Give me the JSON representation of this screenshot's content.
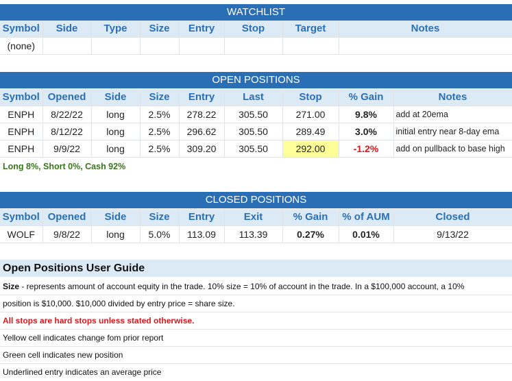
{
  "watchlist": {
    "title": "WATCHLIST",
    "headers": [
      "Symbol",
      "Side",
      "Type",
      "Size",
      "Entry",
      "Stop",
      "Target",
      "Notes"
    ],
    "rows": [
      [
        "(none)",
        "",
        "",
        "",
        "",
        "",
        "",
        ""
      ]
    ]
  },
  "open_positions": {
    "title": "OPEN POSITIONS",
    "headers": [
      "Symbol",
      "Opened",
      "Side",
      "Size",
      "Entry",
      "Last",
      "Stop",
      "% Gain",
      "Notes"
    ],
    "rows": [
      [
        "ENPH",
        "8/22/22",
        "long",
        "2.5%",
        "278.22",
        "305.50",
        "271.00",
        "9.8%",
        "add at 20ema"
      ],
      [
        "ENPH",
        "8/12/22",
        "long",
        "2.5%",
        "296.62",
        "305.50",
        "289.49",
        "3.0%",
        "initial entry near 8-day ema"
      ],
      [
        "ENPH",
        "9/9/22",
        "long",
        "2.5%",
        "309.20",
        "305.50",
        "292.00",
        "-1.2%",
        "add on pullback to base high"
      ]
    ],
    "summary": "Long 8%, Short 0%, Cash 92%",
    "highlight_color": "#ffff99"
  },
  "closed_positions": {
    "title": "CLOSED POSITIONS",
    "headers": [
      "Symbol",
      "Opened",
      "Side",
      "Size",
      "Entry",
      "Exit",
      "% Gain",
      "% of AUM",
      "Closed"
    ],
    "rows": [
      [
        "WOLF",
        "9/8/22",
        "long",
        "5.0%",
        "113.09",
        "113.39",
        "0.27%",
        "0.01%",
        "9/13/22"
      ]
    ]
  },
  "guide": {
    "title": "Open Positions User Guide",
    "size_term": "Size",
    "size_desc": " - represents amount of account equity in the trade.  10% size = 10% of account in the trade.  In a $100,000 account, a 10%",
    "size_desc2": "position is $10,000.  $10,000 divided by entry price = share size.",
    "stops": "All stops are hard stops unless stated otherwise.",
    "yellow": "Yellow cell indicates change fom prior report",
    "green": "Green cell indicates new position",
    "underlined": "Underlined entry indicates an average price"
  },
  "colors": {
    "header_band": "#2a6fb6",
    "header_row": "#dceaf6",
    "positive_summary": "#38761d",
    "negative": "#e0161b"
  }
}
